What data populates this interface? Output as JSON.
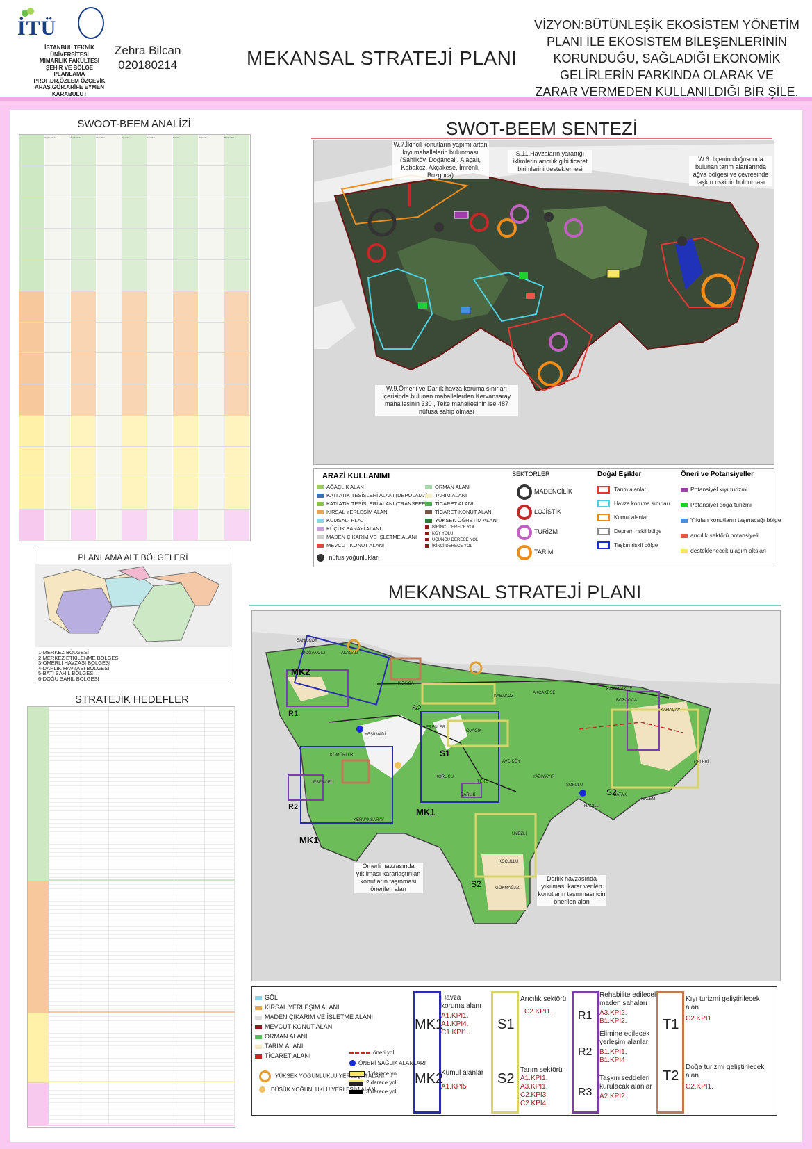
{
  "header": {
    "logo_text": "İTÜ",
    "institution_lines": [
      "İSTANBUL TEKNİK",
      "ÜNİVERSİTESİ",
      "MİMARLIK FAKÜLTESİ",
      "ŞEHİR VE BÖLGE",
      "PLANLAMA",
      "PROF.DR.ÖZLEM ÖZÇEVİK",
      "ARAŞ.GÖR.ARİFE EYMEN",
      "KARABULUT"
    ],
    "author_name": "Zehra Bilcan",
    "student_id": "020180214",
    "title": "MEKANSAL STRATEJİ PLANI",
    "vision_lines": [
      "VİZYON:BÜTÜNLEŞİK EKOSİSTEM YÖNETİM",
      "PLANI İLE EKOSİSTEM BİLEŞENLERİNİN",
      "KORUNDUĞU, SAĞLADIĞI   EKONOMİK",
      "GELİRLERİN FARKINDA OLARAK VE",
      "ZARAR  VERMEDEN  KULLANILDIĞI BİR ŞİLE."
    ]
  },
  "swot_table": {
    "title": "SWOOT-BEEM ANALİZİ",
    "band_colors": [
      "#cfe8c4",
      "#cfe8c4",
      "#cfe8c4",
      "#cfe8c4",
      "#cfe8c4",
      "#f7c89c",
      "#f7c89c",
      "#f7c89c",
      "#f7c89c",
      "#fff1a8",
      "#fff1a8",
      "#fff1a8",
      "#f7c9ef"
    ],
    "columns": [
      "Güçlü Yönler",
      "Zayıf Yönler",
      "Olanaklar",
      "Tehditler",
      "Fırsatlar",
      "Riskler",
      "Önlemler",
      "Beklentiler"
    ]
  },
  "sub_regions": {
    "title": "PLANLAMA ALT BÖLGELERİ",
    "items": [
      "1-MERKEZ BÖLGESİ",
      "2-MERKEZ ETKİLENME BÖLGESİ",
      "3-ÖMERLİ HAVZASI BÖLGESİ",
      "4-DARLIK HAVZASI BÖLGESİ",
      "5-BATI SAHİL BÖLGESİ",
      "6-DOĞU SAHİL BÖLGESİ"
    ]
  },
  "strategic_goals": {
    "title": "STRATEJİK HEDEFLER",
    "band_colors": [
      "#cfe8c4",
      "#f7c89c",
      "#fff1a8",
      "#f7c9ef"
    ]
  },
  "synthesis": {
    "title": "SWOT-BEEM SENTEZİ",
    "annotations": {
      "w7": "W.7.İkincil konutların yapımı artan kıyı mahallelerin bulunması (Sahilköy, Doğançalı, Alaçalı, Kabakoz, Akçakese, İmrenli, Bozgoca)",
      "s11": "S.11.Havzaların yarattığı iklimlerin arıcılık gibi ticaret birimlerini desteklemesi",
      "w6": "W.6. İlçenin doğusunda bulunan tarım alanlarında ağva bölgesi ve çevresinde taşkın riskinin bulunması",
      "w9": "W.9.Ömerli ve Darlık havza koruma sınırları içerisinde bulunan mahallelerden Kervansaray mahallesinin 330 , Teke mahallesinin ise 487 nüfusa sahip olması"
    },
    "legend": {
      "land_use_title": "ARAZİ KULLANIMI",
      "land_use": [
        {
          "label": "AĞAÇLIK ALAN",
          "color": "#9ccc65"
        },
        {
          "label": "KATI ATIK TESİSLERİ ALANI (DEPOLAMA)",
          "color": "#3f6fb5"
        },
        {
          "label": "KATI ATIK TESİSLERİ ALANI (TRANSFER)",
          "color": "#8bc34a"
        },
        {
          "label": "KIRSAL YERLEŞİM ALANI",
          "color": "#e0a85a"
        },
        {
          "label": "KUMSAL- PLAJ",
          "color": "#8fd3e8"
        },
        {
          "label": "KÜÇÜK SANAYİ ALANI",
          "color": "#c9a0dc"
        },
        {
          "label": "MADEN ÇIKARIM VE İŞLETME ALANI",
          "color": "#cccccc"
        },
        {
          "label": "MEVCUT KONUT ALANI",
          "color": "#e04848"
        }
      ],
      "land_use_2": [
        {
          "label": "ORMAN ALANI",
          "color": "#a5d6a7"
        },
        {
          "label": "TARIM ALANI",
          "color": "#f5f0c8"
        },
        {
          "label": "TİCARET ALANI",
          "color": "#4caf50"
        },
        {
          "label": "TİCARET-KONUT ALANI",
          "color": "#795548"
        },
        {
          "label": "YÜKSEK ÖĞRETİM ALANI",
          "color": "#2e7d32"
        }
      ],
      "roads": [
        "BİRİNCİ DERECE YOL",
        "KÖY YOLU",
        "ÜÇÜNCÜ DERECE YOL",
        "İKİNCİ DERECE YOL"
      ],
      "population": "nüfus yoğunlukları",
      "sectors_title": "SEKTÖRLER",
      "sectors": [
        {
          "label": "MADENCİLİK",
          "color": "#333333"
        },
        {
          "label": "LOJİSTİK",
          "color": "#c62828"
        },
        {
          "label": "TURİZM",
          "color": "#c060c0"
        },
        {
          "label": "TARIM",
          "color": "#ef8c1a"
        }
      ],
      "thresholds_title": "Doğal Eşikler",
      "thresholds": [
        {
          "label": "Tarım alanları",
          "color": "#e53935"
        },
        {
          "label": "Havza koruma sınırları",
          "color": "#4dd0e1"
        },
        {
          "label": "Kumul alanlar",
          "color": "#ef8c1a"
        },
        {
          "label": "Deprem riskli bölge",
          "color": "#888888"
        },
        {
          "label": "Taşkın riskli bölge",
          "color": "#1a2cd8"
        }
      ],
      "proposals_title": "Öneri ve Potansiyeller",
      "proposals": [
        {
          "label": "Potansiyel kıyı turizmi",
          "color": "#9c3fa8"
        },
        {
          "label": "Potansiyel doğa turizmi",
          "color": "#1fcf2f"
        },
        {
          "label": "Yıkılan konutların taşınacağı bölge",
          "color": "#4a8ee0"
        },
        {
          "label": "arıcılık sektörü potansiyeli",
          "color": "#ef5350"
        },
        {
          "label": "desteklenecek ulaşım aksları",
          "color": "#f5e663"
        }
      ]
    }
  },
  "strategy_plan": {
    "title": "MEKANSAL STRATEJİ PLANI",
    "place_names": [
      "SAHİLKÖY",
      "DOĞANCILI",
      "ALAÇALI",
      "KIZILCA",
      "YEŞİLVADİ",
      "ERENLER",
      "KÖMÜRLÜK",
      "OVACIK",
      "AKÇAKESE",
      "KARACAKÖY",
      "BOZGOCA",
      "KARAÇAY",
      "ÇELEBİ",
      "ESENCELİ",
      "KERVANSARAY",
      "DARLIK",
      "TEKE",
      "KORUCU",
      "AVCIKÖY",
      "KABAKOZ",
      "ÇATAK",
      "KALEM",
      "SOFULU",
      "HACILLI",
      "YAZIMAYIR",
      "GÖKMAĞAZ",
      "KOÇULLU",
      "ÜVEZLİ"
    ],
    "zone_labels": [
      "MK2",
      "MK1",
      "MK1",
      "R1",
      "R2",
      "R2",
      "S1",
      "S2",
      "S2",
      "S2",
      "R3",
      "T1",
      "T2"
    ],
    "annotations": {
      "omerli": "Ömerli havzasında yıkılması kararlaştırılan konutların taşınması önerilen alan",
      "darlik": "Darlık havzasında yıkılması karar verilen konutların taşınması için önerilen alan"
    },
    "legend_land": [
      {
        "label": "GÖL",
        "color": "#8fd3e8"
      },
      {
        "label": "KIRSAL YERLEŞİM ALANI",
        "color": "#e0a85a"
      },
      {
        "label": "MADEN ÇIKARIM VE İŞLETME ALANI",
        "color": "#dddddd"
      },
      {
        "label": "MEVCUT KONUT ALANI",
        "color": "#8b1a1a"
      },
      {
        "label": "ORMAN ALANI",
        "color": "#5cb85c"
      },
      {
        "label": "TARIM ALANI",
        "color": "#f5e9c8"
      },
      {
        "label": "TİCARET ALANI",
        "color": "#c62828"
      }
    ],
    "legend_settlement": [
      "YÜKSEK YOĞUNLUKLU YERLEŞİM ALANI",
      "DÜŞÜK YOĞUNLUKLU YERLEŞİM ALANI"
    ],
    "legend_roads": [
      "öneri yol",
      "ÖNERİ SAĞLIK ALANLARI",
      "1.derece yol",
      "2.derece yol",
      "3.derece yol"
    ],
    "boxes": {
      "mk": {
        "color": "#2b2bb0",
        "label1": "MK1",
        "label2": "MK2",
        "title1": "Havza koruma alanı",
        "kpi1": [
          "A1.KPI1.",
          "A1.KPI4.",
          "C1.KPI1."
        ],
        "title2": "Kumul alanlar",
        "kpi2": [
          "A1.KPI5"
        ]
      },
      "s": {
        "color": "#d8d36a",
        "label1": "S1",
        "label2": "S2",
        "title1": "Arıcılık sektörü",
        "kpi1": [
          "C2.KPI1."
        ],
        "title2": "Tarım sektörü",
        "kpi2": [
          "A1.KPI1.",
          "A3.KPI1.",
          "C2.KPI3.",
          "C2.KPI4."
        ]
      },
      "r": {
        "color": "#7b3fa8",
        "label1": "R1",
        "label2": "R2",
        "label3": "R3",
        "title1": "Rehabilite edilecek maden sahaları",
        "kpi1": [
          "A3.KPI2.",
          "B1.KPI2."
        ],
        "title2": "Elimine edilecek yerleşim alanları",
        "kpi2": [
          "B1.KPI1.",
          "B1.KPI4"
        ],
        "title3": "Taşkın seddeleri kurulacak alanlar",
        "kpi3": [
          "A2.KPI2."
        ]
      },
      "t": {
        "color": "#c07a55",
        "label1": "T1",
        "label2": "T2",
        "title1": "Kıyı turizmi geliştirilecek alan",
        "kpi1": [
          "C2.KPI1"
        ],
        "title2": "Doğa turizmi geliştirilecek alan",
        "kpi2": [
          "C2.KPI1."
        ]
      }
    }
  }
}
